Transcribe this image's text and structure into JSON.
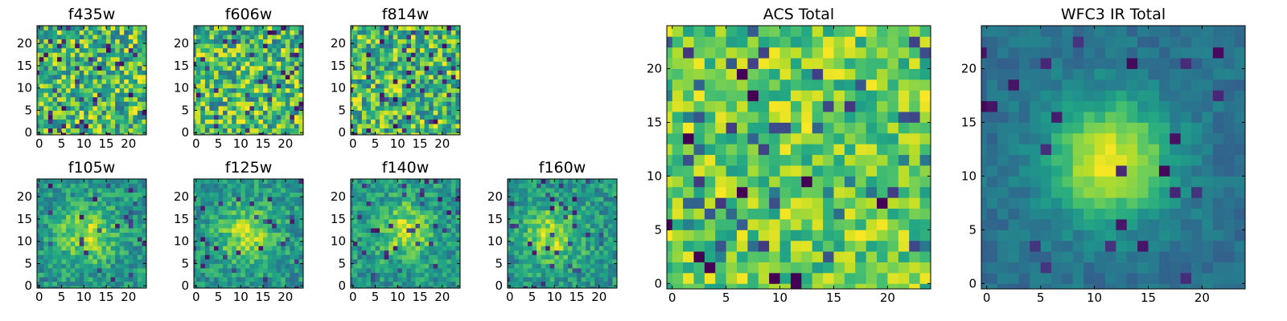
{
  "figure": {
    "description_type": "multi-panel pixel image grid"
  },
  "chart_data": [
    {
      "id": "f435w",
      "type": "heatmap",
      "title": "f435w",
      "grid_size": 25,
      "xlim": [
        0,
        24
      ],
      "ylim": [
        0,
        24
      ],
      "xticks": [
        "0",
        "5",
        "10",
        "15",
        "20"
      ],
      "yticks": [
        "0",
        "5",
        "10",
        "15",
        "20"
      ],
      "colormap": "viridis",
      "source_center": false,
      "pattern": "noise"
    },
    {
      "id": "f606w",
      "type": "heatmap",
      "title": "f606w",
      "grid_size": 25,
      "xlim": [
        0,
        24
      ],
      "ylim": [
        0,
        24
      ],
      "xticks": [
        "0",
        "5",
        "10",
        "15",
        "20"
      ],
      "yticks": [
        "0",
        "5",
        "10",
        "15",
        "20"
      ],
      "colormap": "viridis",
      "source_center": false,
      "pattern": "noise"
    },
    {
      "id": "f814w",
      "type": "heatmap",
      "title": "f814w",
      "grid_size": 25,
      "xlim": [
        0,
        24
      ],
      "ylim": [
        0,
        24
      ],
      "xticks": [
        "0",
        "5",
        "10",
        "15",
        "20"
      ],
      "yticks": [
        "0",
        "5",
        "10",
        "15",
        "20"
      ],
      "colormap": "viridis",
      "source_center": false,
      "pattern": "noise"
    },
    {
      "id": "f105w",
      "type": "heatmap",
      "title": "f105w",
      "grid_size": 25,
      "xlim": [
        0,
        24
      ],
      "ylim": [
        0,
        24
      ],
      "xticks": [
        "0",
        "5",
        "10",
        "15",
        "20"
      ],
      "yticks": [
        "0",
        "5",
        "10",
        "15",
        "20"
      ],
      "colormap": "viridis",
      "source_center": [
        11,
        12
      ],
      "pattern": "source"
    },
    {
      "id": "f125w",
      "type": "heatmap",
      "title": "f125w",
      "grid_size": 25,
      "xlim": [
        0,
        24
      ],
      "ylim": [
        0,
        24
      ],
      "xticks": [
        "0",
        "5",
        "10",
        "15",
        "20"
      ],
      "yticks": [
        "0",
        "5",
        "10",
        "15",
        "20"
      ],
      "colormap": "viridis",
      "source_center": [
        12,
        12
      ],
      "pattern": "source"
    },
    {
      "id": "f140w",
      "type": "heatmap",
      "title": "f140w",
      "grid_size": 25,
      "xlim": [
        0,
        24
      ],
      "ylim": [
        0,
        24
      ],
      "xticks": [
        "0",
        "5",
        "10",
        "15",
        "20"
      ],
      "yticks": [
        "0",
        "5",
        "10",
        "15",
        "20"
      ],
      "colormap": "viridis",
      "source_center": [
        12,
        13
      ],
      "pattern": "source"
    },
    {
      "id": "f160w",
      "type": "heatmap",
      "title": "f160w",
      "grid_size": 25,
      "xlim": [
        0,
        24
      ],
      "ylim": [
        0,
        24
      ],
      "xticks": [
        "0",
        "5",
        "10",
        "15",
        "20"
      ],
      "yticks": [
        "0",
        "5",
        "10",
        "15",
        "20"
      ],
      "colormap": "viridis",
      "source_center": [
        10,
        12
      ],
      "pattern": "source"
    },
    {
      "id": "acs_total",
      "type": "heatmap",
      "title": "ACS Total",
      "grid_size": 25,
      "xlim": [
        0,
        24
      ],
      "ylim": [
        0,
        24
      ],
      "xticks": [
        "0",
        "5",
        "10",
        "15",
        "20"
      ],
      "yticks": [
        "0",
        "5",
        "10",
        "15",
        "20"
      ],
      "colormap": "viridis",
      "source_center": false,
      "pattern": "noise_bright"
    },
    {
      "id": "wfc3_ir_total",
      "type": "heatmap",
      "title": "WFC3 IR Total",
      "grid_size": 25,
      "xlim": [
        0,
        24
      ],
      "ylim": [
        0,
        24
      ],
      "xticks": [
        "0",
        "5",
        "10",
        "15",
        "20"
      ],
      "yticks": [
        "0",
        "5",
        "10",
        "15",
        "20"
      ],
      "colormap": "viridis",
      "source_center": [
        12,
        12
      ],
      "pattern": "smooth_source"
    }
  ]
}
